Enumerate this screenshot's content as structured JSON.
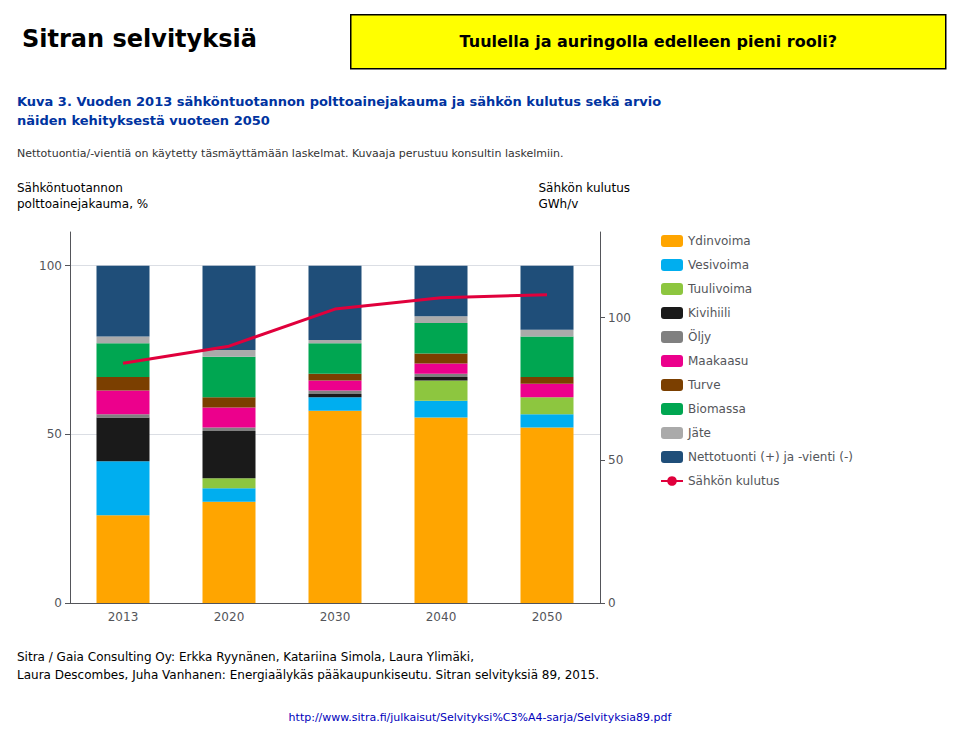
{
  "chart_data": {
    "type": "bar",
    "stacked": true,
    "title": "Sitran selvityksiä",
    "subtitle": [
      "Kuva 3. Vuoden 2013 sähköntuotannon polttoainejakauma ja sähkön kulutus sekä arvio",
      "näiden kehityksestä vuoteen 2050"
    ],
    "annotations": [
      "Tuulella ja auringolla edelleen pieni rooli?",
      "Nettotuontia/-vientiä on käytetty täsmäyttämään laskelmat. Kuvaaja perustuu konsultin laskelmiin.",
      "Sitra / Gaia Consulting Oy: Erkka Ryynänen, Katariina Simola, Laura Ylimäki,",
      "Laura Descombes, Juha Vanhanen: Energiaälykäs pääkaupunkiseutu. Sitran selvityksiä 89, 2015.",
      "http://www.sitra.fi/julkaisut/Selvityksi%C3%A4-sarja/Selvityksia89.pdf"
    ],
    "ylabel": [
      "Sähköntuotannon",
      "polttoainejakauma, %"
    ],
    "y2label": [
      "Sähkön kulutus",
      "GWh/v"
    ],
    "categories": [
      2013,
      2020,
      2030,
      2040,
      2050
    ],
    "series": [
      {
        "name": "Ydinvoima",
        "color": "#FFA500",
        "values": [
          26,
          30,
          57,
          55,
          52
        ]
      },
      {
        "name": "Vesivoima",
        "color": "#00AEEF",
        "values": [
          16,
          4,
          4,
          5,
          4
        ]
      },
      {
        "name": "Tuulivoima",
        "color": "#8DC63F",
        "values": [
          0,
          3,
          0,
          6,
          5
        ]
      },
      {
        "name": "Kivihiili",
        "color": "#1A1A1A",
        "values": [
          13,
          14,
          1,
          1,
          0
        ]
      },
      {
        "name": "Öljy",
        "color": "#808080",
        "values": [
          1,
          1,
          1,
          1,
          0
        ]
      },
      {
        "name": "Maakaasu",
        "color": "#EC008C",
        "values": [
          7,
          6,
          3,
          3,
          4
        ]
      },
      {
        "name": "Turve",
        "color": "#7B3F00",
        "values": [
          4,
          3,
          2,
          3,
          2
        ]
      },
      {
        "name": "Biomassa",
        "color": "#00A651",
        "values": [
          10,
          12,
          9,
          9,
          12
        ]
      },
      {
        "name": "Jäte",
        "color": "#AAAAAA",
        "values": [
          2,
          2,
          1,
          2,
          2
        ]
      },
      {
        "name": "Nettotuonti (+) ja -vienti (-)",
        "color": "#1F4E79",
        "values": [
          21,
          25,
          22,
          15,
          19
        ]
      },
      {
        "name": "Sähkön kulutus",
        "type": "line",
        "axis": "y2",
        "color": "#E0003C",
        "values": [
          84,
          90,
          103,
          107,
          108
        ]
      }
    ],
    "ylim": [
      0,
      110
    ],
    "yticks": [
      0,
      50,
      100
    ],
    "y2lim": [
      0,
      130
    ],
    "y2ticks": [
      0,
      50,
      100
    ],
    "grid": true,
    "legend": "right"
  }
}
